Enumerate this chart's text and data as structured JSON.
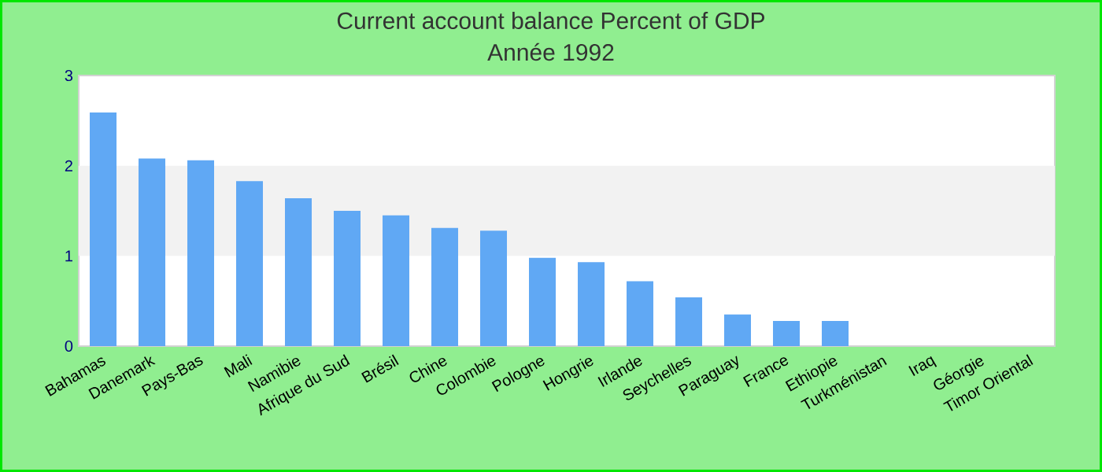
{
  "chart_data": {
    "type": "bar",
    "title": "Current account balance  Percent of GDP",
    "subtitle": "Année 1992",
    "categories": [
      "Bahamas",
      "Danemark",
      "Pays-Bas",
      "Mali",
      "Namibie",
      "Afrique du Sud",
      "Brésil",
      "Chine",
      "Colombie",
      "Pologne",
      "Hongrie",
      "Irlande",
      "Seychelles",
      "Paraguay",
      "France",
      "Ethiopie",
      "Turkménistan",
      "Iraq",
      "Géorgie",
      "Timor Oriental"
    ],
    "values": [
      2.59,
      2.08,
      2.06,
      1.83,
      1.64,
      1.5,
      1.45,
      1.31,
      1.28,
      0.98,
      0.93,
      0.72,
      0.54,
      0.35,
      0.28,
      0.28,
      null,
      null,
      null,
      null
    ],
    "color": "#60a8f4",
    "ylim": [
      0,
      3
    ],
    "yticks": [
      0,
      1,
      2,
      3
    ],
    "bands": [
      {
        "axis": "y",
        "from": 1,
        "to": 2,
        "color": "#f2f2f2"
      }
    ]
  }
}
